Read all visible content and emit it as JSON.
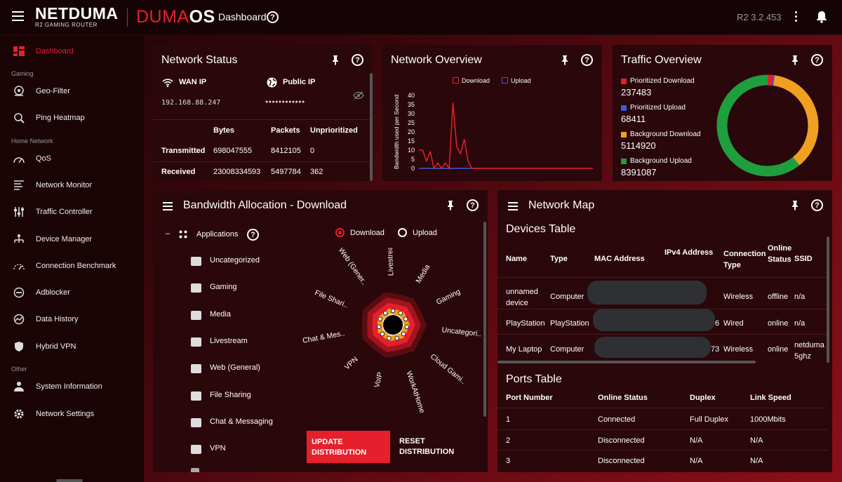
{
  "header": {
    "brand": "NETDUMA",
    "brand_sub": "R2 GAMING ROUTER",
    "os_a": "DUMA",
    "os_b": "OS",
    "breadcrumb": "Dashboard",
    "version": "R2 3.2.453"
  },
  "sidebar": {
    "dashboard": "Dashboard",
    "section_gaming": "Gaming",
    "geofilter": "Geo-Filter",
    "ping": "Ping Heatmap",
    "section_home": "Home Network",
    "qos": "QoS",
    "netmon": "Network Monitor",
    "traffic": "Traffic Controller",
    "device": "Device Manager",
    "bench": "Connection Benchmark",
    "adblock": "Adblocker",
    "history": "Data History",
    "vpn": "Hybrid VPN",
    "section_other": "Other",
    "sysinfo": "System Information",
    "netset": "Network Settings"
  },
  "network_status": {
    "title": "Network Status",
    "wan_label": "WAN IP",
    "wan_value": "192.168.88.247",
    "public_label": "Public IP",
    "public_value": "●●●●●●●●●●●●",
    "col_bytes": "Bytes",
    "col_packets": "Packets",
    "col_unprio": "Unprioritized",
    "tx_label": "Transmitted",
    "tx_bytes": "698047555",
    "tx_packets": "8412105",
    "tx_unprio": "0",
    "rx_label": "Received",
    "rx_bytes": "23008334593",
    "rx_packets": "5497784",
    "rx_unprio": "362"
  },
  "network_overview": {
    "title": "Network Overview",
    "legend_download": "Download",
    "legend_upload": "Upload",
    "ylabel": "Bandwidth used per Second",
    "download_color": "#e5202c",
    "upload_color": "#3b5bdb"
  },
  "chart_data": {
    "type": "line",
    "ylabel": "Bandwidth used per Second",
    "ylim": [
      0,
      40
    ],
    "yticks": [
      "0",
      "5",
      "10",
      "15",
      "20",
      "25",
      "30",
      "35",
      "40"
    ],
    "series": [
      {
        "name": "Download",
        "values": [
          10,
          10,
          4,
          9,
          0,
          3,
          0,
          3,
          0,
          36,
          12,
          8,
          16,
          4,
          0,
          0,
          0,
          0,
          0,
          0,
          0,
          0,
          0,
          0,
          0,
          0,
          0,
          0,
          0,
          0,
          0,
          0,
          0,
          0,
          0,
          0,
          0,
          0,
          0,
          0,
          0,
          0,
          0,
          0,
          0,
          0,
          0
        ]
      },
      {
        "name": "Upload",
        "values": [
          0,
          0,
          0,
          0,
          0,
          0,
          0,
          0,
          0,
          0,
          0,
          0,
          0,
          0,
          0,
          0,
          0,
          0,
          0,
          0,
          0,
          0,
          0,
          0,
          0,
          0,
          0,
          0,
          0,
          0,
          0,
          0,
          0,
          0,
          0,
          0,
          0,
          0,
          0,
          0,
          0,
          0,
          0,
          0,
          0,
          0,
          0
        ]
      }
    ]
  },
  "traffic_overview": {
    "title": "Traffic Overview",
    "items": [
      {
        "label": "Prioritized Download",
        "value": "237483",
        "color": "#e5202c",
        "v": 237483
      },
      {
        "label": "Prioritized Upload",
        "value": "68411",
        "color": "#3b5bdb",
        "v": 68411
      },
      {
        "label": "Background Download",
        "value": "5114920",
        "color": "#f0a020",
        "v": 5114920
      },
      {
        "label": "Background Upload",
        "value": "8391087",
        "color": "#1f9e3e",
        "v": 8391087
      }
    ]
  },
  "bandwidth": {
    "title": "Bandwidth Allocation - Download",
    "applications": "Applications",
    "radio_download": "Download",
    "radio_upload": "Upload",
    "apps": [
      "Uncategorized",
      "Gaming",
      "Media",
      "Livestream",
      "Web (General)",
      "File Sharing",
      "Chat & Messaging",
      "VPN"
    ],
    "wheel_labels": [
      "Livestream",
      "Media",
      "Gaming",
      "Uncategori..",
      "Cloud Gami..",
      "WorkAtHome",
      "VoIP",
      "VPN",
      "Chat & Mes..",
      "File Shari..",
      "Web (Gener.."
    ],
    "update_btn": "UPDATE DISTRIBUTION",
    "reset_btn": "RESET DISTRIBUTION"
  },
  "network_map": {
    "title": "Network Map",
    "devices_title": "Devices Table",
    "cols": [
      "Name",
      "Type",
      "MAC Address",
      "IPv4 Address",
      "Connection Type",
      "Online Status",
      "SSID"
    ],
    "rows": [
      {
        "name": "unnamed device",
        "type": "Computer",
        "ip_tail": "",
        "conn": "Wireless",
        "status": "offline",
        "ssid": "n/a"
      },
      {
        "name": "PlayStation",
        "type": "PlayStation",
        "ip_tail": "6",
        "conn": "Wired",
        "status": "online",
        "ssid": "n/a"
      },
      {
        "name": "My Laptop",
        "type": "Computer",
        "ip_tail": "73",
        "conn": "Wireless",
        "status": "online",
        "ssid": "netduma 5ghz"
      }
    ],
    "ports_title": "Ports Table",
    "port_cols": [
      "Port Number",
      "Online Status",
      "Duplex",
      "Link Speed"
    ],
    "ports": [
      {
        "n": "1",
        "s": "Connected",
        "d": "Full Duplex",
        "l": "1000Mbits"
      },
      {
        "n": "2",
        "s": "Disconnected",
        "d": "N/A",
        "l": "N/A"
      },
      {
        "n": "3",
        "s": "Disconnected",
        "d": "N/A",
        "l": "N/A"
      }
    ]
  }
}
